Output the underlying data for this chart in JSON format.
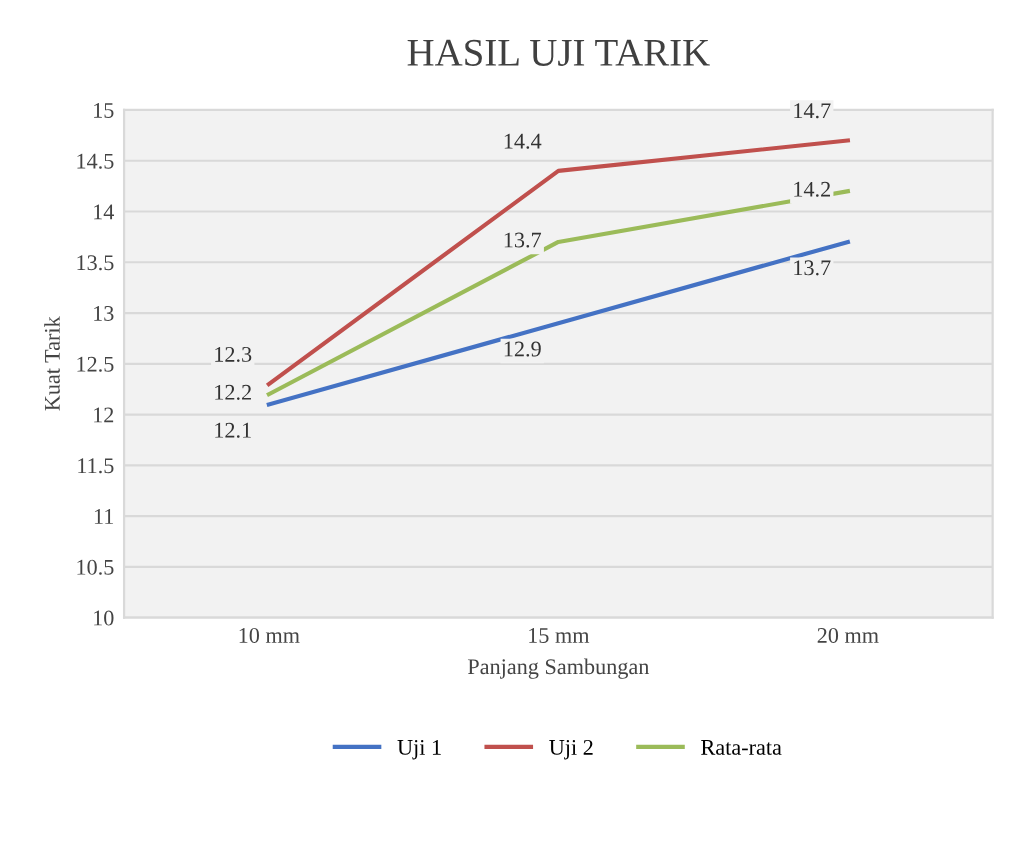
{
  "chart_data": {
    "type": "line",
    "title": "HASIL UJI TARIK",
    "xlabel": "Panjang Sambungan",
    "ylabel": "Kuat Tarik",
    "categories": [
      "10 mm",
      "15 mm",
      "20 mm"
    ],
    "series": [
      {
        "name": "Uji 1",
        "color": "#4472c4",
        "values": [
          12.1,
          12.9,
          13.7
        ],
        "value_labels": [
          "12.1",
          "12.9",
          "13.7"
        ]
      },
      {
        "name": "Uji 2",
        "color": "#c0504d",
        "values": [
          12.3,
          14.4,
          14.7
        ],
        "value_labels": [
          "12.3",
          "14.4",
          "14.7"
        ]
      },
      {
        "name": "Rata-rata",
        "color": "#9bbb59",
        "values": [
          12.2,
          13.7,
          14.2
        ],
        "value_labels": [
          "12.2",
          "13.7",
          "14.2"
        ]
      }
    ],
    "ylim": [
      10,
      15
    ],
    "yticks": [
      10,
      10.5,
      11,
      11.5,
      12,
      12.5,
      13,
      13.5,
      14,
      14.5,
      15
    ],
    "grid": "y",
    "legend": "bottom",
    "marker": "none",
    "line_style": "solid"
  }
}
